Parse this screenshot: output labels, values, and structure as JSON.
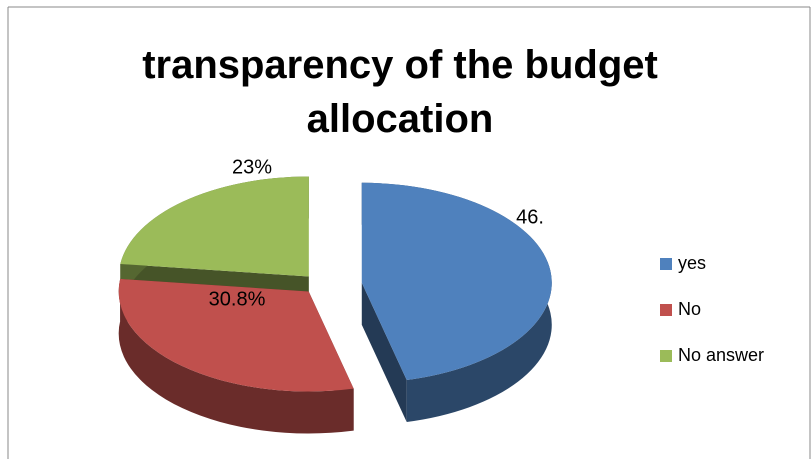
{
  "chart_data": {
    "type": "pie",
    "title": "transparency  of the budget allocation",
    "categories": [
      "yes",
      "No",
      "No answer"
    ],
    "values": [
      46.2,
      30.8,
      23
    ],
    "value_labels": [
      "46.",
      "30.8%",
      "23%"
    ],
    "colors": [
      "#4f81bd",
      "#c0504d",
      "#9bbb59"
    ],
    "legend": "right"
  }
}
